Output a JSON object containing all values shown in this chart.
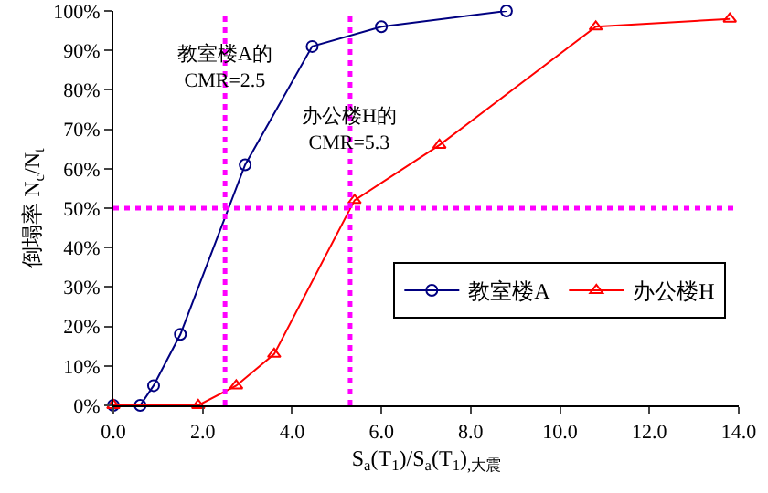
{
  "chart_data": {
    "type": "line",
    "xlabel": "S$_{a}$(T$_{1}$)/S$_{a}$(T$_{1}$)$_{,大震}$",
    "ylabel": "倒塌率 N$_{c}$/N$_{t}$",
    "series": [
      {
        "name": "教室楼A",
        "color": "#000080",
        "marker": "circle",
        "x": [
          0,
          0.6,
          0.9,
          1.5,
          2.95,
          4.45,
          6.0,
          8.8
        ],
        "values": [
          0,
          0,
          5,
          18,
          61,
          91,
          96,
          100
        ]
      },
      {
        "name": "办公楼H",
        "color": "#ff0000",
        "marker": "triangle",
        "x": [
          0,
          1.9,
          2.75,
          3.6,
          5.4,
          7.3,
          10.8,
          13.8
        ],
        "values": [
          0,
          0,
          5,
          13,
          52,
          66,
          96,
          98
        ]
      }
    ],
    "xlim": [
      0,
      14
    ],
    "xticks": [
      {
        "value": 0,
        "label": "0.0"
      },
      {
        "value": 2,
        "label": "2.0"
      },
      {
        "value": 4,
        "label": "4.0"
      },
      {
        "value": 6,
        "label": "6.0"
      },
      {
        "value": 8,
        "label": "8.0"
      },
      {
        "value": 10,
        "label": "10.0"
      },
      {
        "value": 12,
        "label": "12.0"
      },
      {
        "value": 14,
        "label": "14.0"
      }
    ],
    "ylim": [
      0,
      100
    ],
    "yticks": [
      {
        "value": 0,
        "label": "0%"
      },
      {
        "value": 10,
        "label": "10%"
      },
      {
        "value": 20,
        "label": "20%"
      },
      {
        "value": 30,
        "label": "30%"
      },
      {
        "value": 40,
        "label": "40%"
      },
      {
        "value": 50,
        "label": "50%"
      },
      {
        "value": 60,
        "label": "60%"
      },
      {
        "value": 70,
        "label": "70%"
      },
      {
        "value": 80,
        "label": "80%"
      },
      {
        "value": 90,
        "label": "90%"
      },
      {
        "value": 100,
        "label": "100%"
      }
    ],
    "ref_lines": [
      {
        "axis": "x",
        "value": 2.5,
        "color": "#ff00ff",
        "line_style": "dotted"
      },
      {
        "axis": "x",
        "value": 5.3,
        "color": "#ff00ff",
        "line_style": "dotted"
      },
      {
        "axis": "y",
        "value": 50,
        "color": "#ff00ff",
        "line_style": "dotted"
      }
    ],
    "annotations": [
      {
        "text": "教室楼A的\nCMR=2.5",
        "x": 2.5,
        "y": 86
      },
      {
        "text": "办公楼H的\nCMR=5.3",
        "x": 5.3,
        "y": 70
      }
    ],
    "grid": false,
    "legend": "bottom right",
    "line_style": "solid"
  }
}
